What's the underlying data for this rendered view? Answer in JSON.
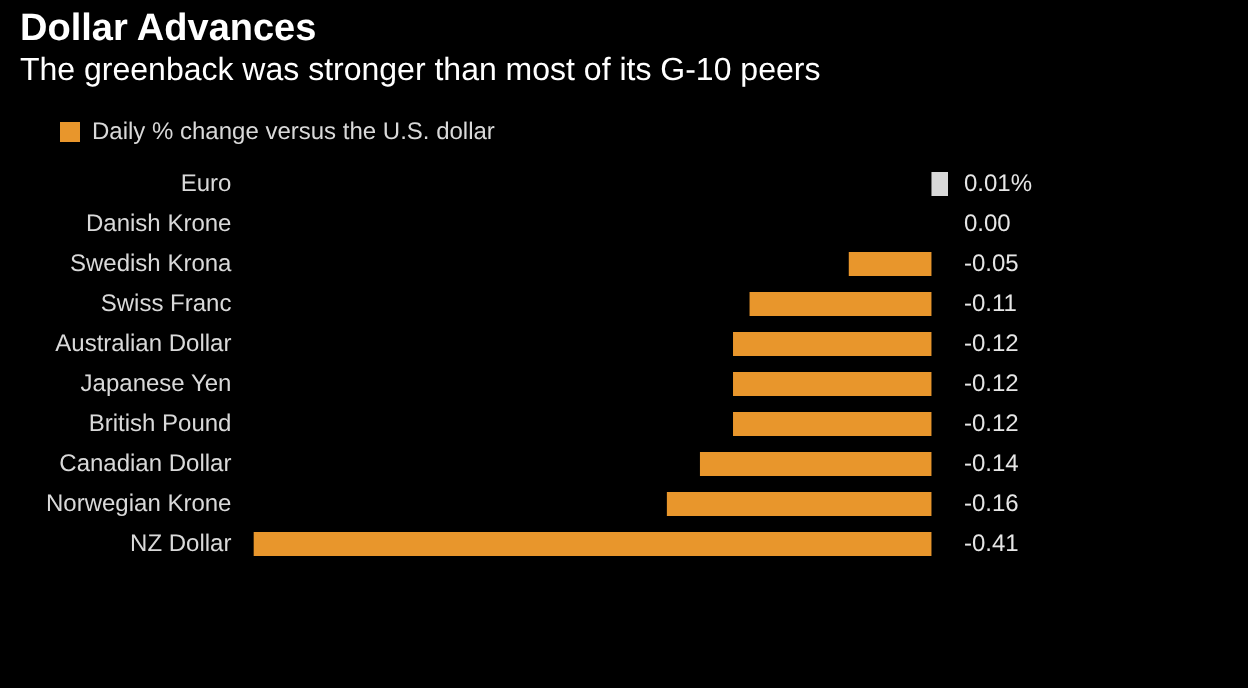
{
  "chart_data": {
    "type": "bar",
    "orientation": "horizontal",
    "title": "Dollar Advances",
    "subtitle": "The greenback was stronger than most of its G-10 peers",
    "categories": [
      "Euro",
      "Danish Krone",
      "Swedish Krona",
      "Swiss Franc",
      "Australian Dollar",
      "Japanese Yen",
      "British Pound",
      "Canadian Dollar",
      "Norwegian Krone",
      "NZ Dollar"
    ],
    "series": [
      {
        "name": "Daily % change versus the U.S. dollar",
        "color": "#e8962c",
        "colors": [
          "#d9d9d9",
          "#d9d9d9",
          "#e8962c",
          "#e8962c",
          "#e8962c",
          "#e8962c",
          "#e8962c",
          "#e8962c",
          "#e8962c",
          "#e8962c"
        ],
        "values": [
          0.01,
          0.0,
          -0.05,
          -0.11,
          -0.12,
          -0.12,
          -0.12,
          -0.14,
          -0.16,
          -0.41
        ],
        "value_labels": [
          "0.01%",
          "0.00",
          "-0.05",
          "-0.11",
          "-0.12",
          "-0.12",
          "-0.12",
          "-0.14",
          "-0.16",
          "-0.41"
        ]
      }
    ],
    "tick_labels": "y",
    "legend": "top left"
  }
}
